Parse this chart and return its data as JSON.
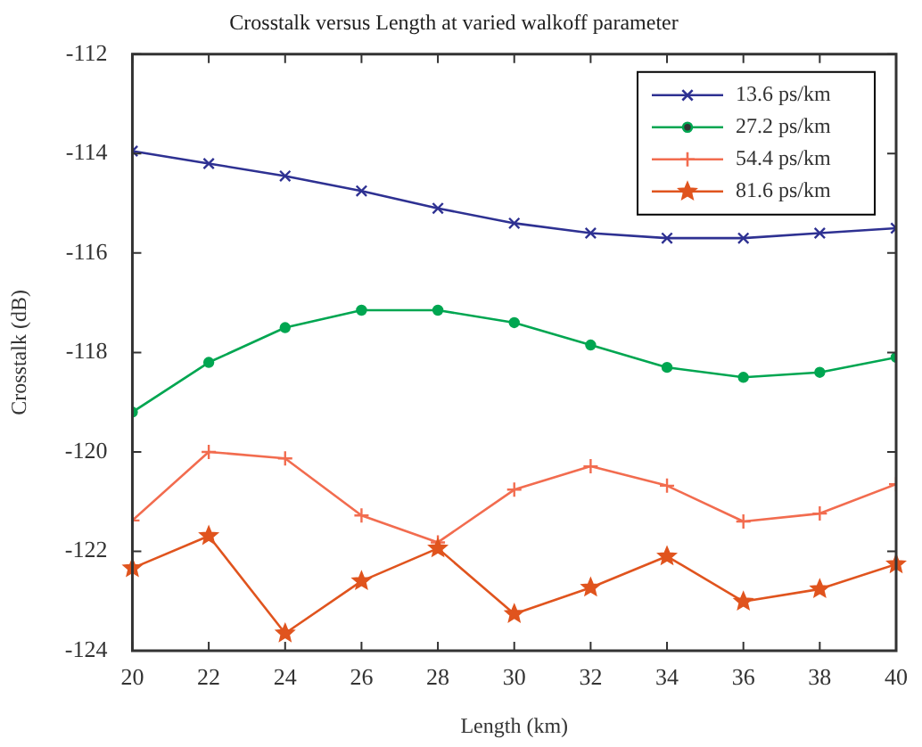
{
  "chart_data": {
    "type": "line",
    "title": "Crosstalk versus Length at varied walkoff parameter",
    "xlabel": "Length (km)",
    "ylabel": "Crosstalk (dB)",
    "x": [
      20,
      22,
      24,
      26,
      28,
      30,
      32,
      34,
      36,
      38,
      40
    ],
    "series": [
      {
        "name": "13.6 ps/km",
        "color": "#2e3192",
        "marker": "cross",
        "values": [
          -113.95,
          -114.2,
          -114.45,
          -114.75,
          -115.1,
          -115.4,
          -115.6,
          -115.7,
          -115.7,
          -115.6,
          -115.5
        ]
      },
      {
        "name": "27.2 ps/km",
        "color": "#00a651",
        "marker": "circle",
        "values": [
          -119.2,
          -118.2,
          -117.5,
          -117.15,
          -117.15,
          -117.4,
          -117.85,
          -118.3,
          -118.5,
          -118.4,
          -118.1
        ]
      },
      {
        "name": "54.4 ps/km",
        "color": "#f26c4f",
        "marker": "plus",
        "values": [
          -121.38,
          -120.0,
          -120.13,
          -121.28,
          -121.82,
          -120.76,
          -120.29,
          -120.68,
          -121.4,
          -121.24,
          -120.65
        ]
      },
      {
        "name": "81.6 ps/km",
        "color": "#e0541e",
        "marker": "star",
        "values": [
          -122.34,
          -121.69,
          -123.65,
          -122.6,
          -121.94,
          -123.26,
          -122.73,
          -122.1,
          -123.01,
          -122.76,
          -122.26
        ]
      }
    ],
    "xlim": [
      20,
      40
    ],
    "xticks": [
      20,
      22,
      24,
      26,
      28,
      30,
      32,
      34,
      36,
      38,
      40
    ],
    "ylim": [
      -124,
      -112
    ],
    "yticks": [
      -124,
      -122,
      -120,
      -118,
      -116,
      -114,
      -112
    ],
    "grid": false,
    "legend": "top right",
    "line_style": "solid"
  }
}
